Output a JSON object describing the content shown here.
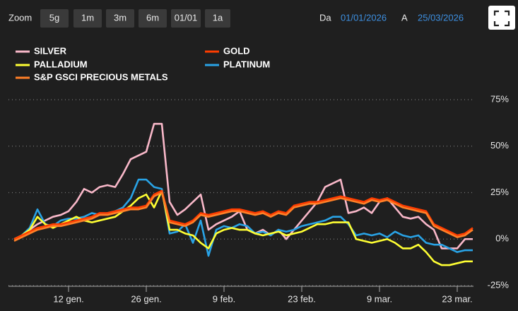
{
  "range_selector": {
    "zoom_label": "Zoom",
    "buttons": [
      "5g",
      "1m",
      "3m",
      "6m",
      "01/01",
      "1a"
    ],
    "from_label": "Da",
    "from": "01/01/2026",
    "to_label": "A",
    "to": "25/03/2026"
  },
  "chart_data": {
    "type": "line",
    "categories": [
      null,
      null,
      null,
      null,
      null,
      null,
      null,
      "12 gen.",
      null,
      null,
      null,
      null,
      null,
      null,
      null,
      null,
      null,
      "26 gen.",
      null,
      null,
      null,
      null,
      null,
      null,
      null,
      null,
      null,
      "9 feb.",
      null,
      null,
      null,
      null,
      null,
      null,
      null,
      null,
      null,
      "23 feb.",
      null,
      null,
      null,
      null,
      null,
      null,
      null,
      null,
      null,
      "9 mar.",
      null,
      null,
      null,
      null,
      null,
      null,
      null,
      null,
      null,
      "23 mar.",
      null,
      null
    ],
    "ylim": [
      -25,
      75
    ],
    "yticks": [
      {
        "value": 75,
        "label": "75%"
      },
      {
        "value": 50,
        "label": "50%"
      },
      {
        "value": 25,
        "label": "25%"
      },
      {
        "value": 0,
        "label": "0%"
      },
      {
        "value": -25,
        "label": "-25%"
      }
    ],
    "grid": true,
    "series": [
      {
        "name": "SILVER",
        "color": "#f9b8c9",
        "values": [
          0,
          2,
          5,
          8,
          10,
          12,
          13,
          15,
          20,
          27,
          25,
          28,
          29,
          28,
          35,
          43,
          45,
          47,
          62,
          62,
          20,
          13,
          16,
          20,
          24,
          5,
          8,
          10,
          12,
          15,
          5,
          3,
          5,
          2,
          5,
          0,
          5,
          10,
          15,
          20,
          28,
          30,
          32,
          14,
          15,
          17,
          14,
          20,
          22,
          17,
          12,
          11,
          12,
          8,
          5,
          -5,
          -5,
          -5,
          0,
          0
        ]
      },
      {
        "name": "GOLD",
        "color": "#ff3d00",
        "values": [
          0,
          2,
          4,
          6,
          7,
          8,
          8,
          9,
          10,
          11,
          12,
          14,
          14,
          15,
          16,
          17,
          17,
          18,
          24,
          26,
          10,
          9,
          8,
          10,
          14,
          13,
          14,
          15,
          16,
          16,
          15,
          14,
          15,
          13,
          15,
          14,
          18,
          19,
          20,
          20,
          21,
          22,
          23,
          22,
          21,
          20,
          22,
          21,
          22,
          20,
          18,
          17,
          16,
          15,
          8,
          6,
          4,
          2,
          3,
          6
        ]
      },
      {
        "name": "PALLADIUM",
        "color": "#ffff33",
        "values": [
          0,
          2,
          5,
          12,
          8,
          6,
          8,
          10,
          12,
          10,
          9,
          10,
          11,
          12,
          15,
          18,
          22,
          24,
          17,
          26,
          5,
          5,
          3,
          2,
          -2,
          -5,
          3,
          5,
          6,
          5,
          5,
          3,
          2,
          3,
          4,
          2,
          3,
          4,
          6,
          8,
          8,
          9,
          9,
          9,
          0,
          -1,
          -2,
          -1,
          0,
          -2,
          -5,
          -5,
          -3,
          -7,
          -12,
          -14,
          -14,
          -13,
          -12,
          -12
        ]
      },
      {
        "name": "PLATINUM",
        "color": "#29a3e6",
        "values": [
          0,
          2,
          6,
          16,
          8,
          7,
          10,
          11,
          11,
          12,
          14,
          13,
          14,
          15,
          17,
          22,
          32,
          32,
          28,
          27,
          3,
          4,
          8,
          -2,
          10,
          -9,
          5,
          7,
          6,
          8,
          7,
          3,
          4,
          2,
          5,
          4,
          5,
          7,
          8,
          9,
          10,
          12,
          12,
          8,
          2,
          3,
          2,
          3,
          1,
          4,
          2,
          1,
          2,
          -2,
          -3,
          -3,
          -5,
          -7,
          -6,
          -6
        ]
      },
      {
        "name": "S&P GSCI PRECIOUS METALS",
        "color": "#ff7f27",
        "values": [
          -1,
          1,
          3,
          5,
          6,
          7,
          7,
          8,
          9,
          10,
          11,
          13,
          13,
          14,
          15,
          16,
          16,
          17,
          23,
          25,
          9,
          8,
          7,
          9,
          13,
          12,
          13,
          14,
          15,
          15,
          14,
          13,
          14,
          12,
          14,
          13,
          17,
          18,
          19,
          19,
          20,
          21,
          22,
          21,
          20,
          19,
          21,
          20,
          21,
          19,
          17,
          16,
          15,
          14,
          7,
          5,
          3,
          1,
          2,
          5
        ]
      }
    ]
  }
}
